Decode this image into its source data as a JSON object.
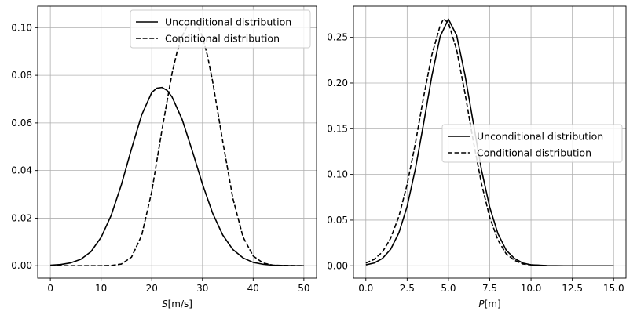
{
  "chart_data": [
    {
      "type": "line",
      "title": "",
      "xlabel": "S[m/s]",
      "xlabel_var": "S",
      "xlabel_unit": "[m/s]",
      "ylabel": "",
      "xlim": [
        -2.5,
        52.5
      ],
      "ylim": [
        -0.0052,
        0.109
      ],
      "xticks": [
        0,
        10,
        20,
        30,
        40,
        50
      ],
      "xtick_labels": [
        "0",
        "10",
        "20",
        "30",
        "40",
        "50"
      ],
      "yticks": [
        0.0,
        0.02,
        0.04,
        0.06,
        0.08,
        0.1
      ],
      "ytick_labels": [
        "0.00",
        "0.02",
        "0.04",
        "0.06",
        "0.08",
        "0.10"
      ],
      "grid": true,
      "legend_position": "top-right",
      "series": [
        {
          "name": "Unconditional distribution",
          "style": "solid",
          "color": "#000000",
          "x": [
            0,
            2,
            4,
            6,
            8,
            10,
            12,
            14,
            16,
            18,
            20,
            21,
            22,
            23,
            24,
            26,
            28,
            30,
            32,
            34,
            36,
            38,
            40,
            42,
            44,
            46,
            48,
            50
          ],
          "y": [
            0.0002,
            0.0005,
            0.0012,
            0.0027,
            0.0059,
            0.0119,
            0.0212,
            0.034,
            0.0491,
            0.0633,
            0.0728,
            0.0746,
            0.0749,
            0.0737,
            0.0709,
            0.0614,
            0.0482,
            0.0343,
            0.0221,
            0.0129,
            0.0068,
            0.0033,
            0.0014,
            0.0006,
            0.0002,
            0.0001,
            0.0,
            0.0
          ]
        },
        {
          "name": "Conditional distribution",
          "style": "dashed",
          "color": "#000000",
          "x": [
            0,
            10,
            12,
            14,
            16,
            18,
            20,
            22,
            24,
            25,
            26,
            27,
            28,
            29,
            30,
            31,
            32,
            34,
            36,
            38,
            40,
            42,
            44,
            50
          ],
          "y": [
            0.0,
            0.0,
            0.0001,
            0.0007,
            0.0036,
            0.0127,
            0.0312,
            0.0569,
            0.0809,
            0.0899,
            0.0965,
            0.1008,
            0.1025,
            0.1011,
            0.0962,
            0.0881,
            0.0775,
            0.0522,
            0.0283,
            0.0121,
            0.0041,
            0.0011,
            0.0002,
            0.0
          ]
        }
      ]
    },
    {
      "type": "line",
      "title": "",
      "xlabel": "P[m]",
      "xlabel_var": "P",
      "xlabel_unit": "[m]",
      "ylabel": "",
      "xlim": [
        -0.75,
        15.75
      ],
      "ylim": [
        -0.0135,
        0.284
      ],
      "xticks": [
        0.0,
        2.5,
        5.0,
        7.5,
        10.0,
        12.5,
        15.0
      ],
      "xtick_labels": [
        "0.0",
        "2.5",
        "5.0",
        "7.5",
        "10.0",
        "12.5",
        "15.0"
      ],
      "yticks": [
        0.0,
        0.05,
        0.1,
        0.15,
        0.2,
        0.25
      ],
      "ytick_labels": [
        "0.00",
        "0.05",
        "0.10",
        "0.15",
        "0.20",
        "0.25"
      ],
      "grid": true,
      "legend_position": "center-right",
      "series": [
        {
          "name": "Unconditional distribution",
          "style": "solid",
          "color": "#000000",
          "x": [
            0,
            0.5,
            1,
            1.5,
            2,
            2.5,
            3,
            3.5,
            4,
            4.5,
            5,
            5.5,
            6,
            6.5,
            7,
            7.5,
            8,
            8.5,
            9,
            9.5,
            10,
            11,
            12,
            13,
            14,
            15
          ],
          "y": [
            0.001,
            0.003,
            0.008,
            0.018,
            0.036,
            0.065,
            0.106,
            0.156,
            0.208,
            0.251,
            0.27,
            0.252,
            0.209,
            0.157,
            0.105,
            0.064,
            0.035,
            0.017,
            0.008,
            0.003,
            0.001,
            0.0002,
            0.0,
            0.0,
            0.0,
            0.0
          ]
        },
        {
          "name": "Conditional distribution",
          "style": "dashed",
          "color": "#000000",
          "x": [
            0,
            0.5,
            1,
            1.5,
            2,
            2.5,
            3,
            3.5,
            4,
            4.5,
            4.7,
            5,
            5.5,
            6,
            6.5,
            7,
            7.5,
            8,
            8.5,
            9,
            9.5,
            10,
            11,
            12,
            15
          ],
          "y": [
            0.003,
            0.007,
            0.015,
            0.03,
            0.054,
            0.089,
            0.134,
            0.185,
            0.231,
            0.263,
            0.27,
            0.266,
            0.236,
            0.189,
            0.137,
            0.09,
            0.053,
            0.028,
            0.013,
            0.006,
            0.002,
            0.001,
            0.0,
            0.0,
            0.0
          ]
        }
      ]
    }
  ]
}
